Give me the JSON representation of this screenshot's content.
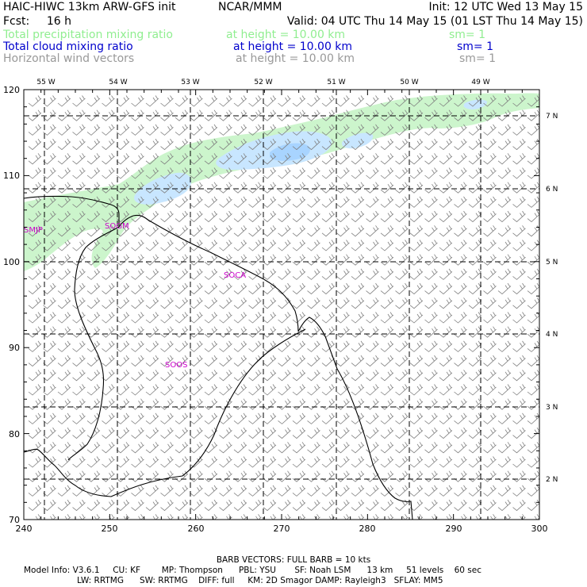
{
  "header": {
    "model": "HAIC-HIWC 13km ARW-GFS init",
    "org": "NCAR/MMM",
    "init": "Init: 12 UTC Wed 13 May 15",
    "fcst_label": "Fcst:",
    "fcst_value": "16 h",
    "valid": "Valid: 04 UTC Thu 14 May 15 (01 LST Thu 14 May 15)"
  },
  "fields": [
    {
      "name": "Total precipitation mixing ratio",
      "level": "at height = 10.00 km",
      "sm": "sm= 1",
      "color": "#90ee90"
    },
    {
      "name": "Total cloud mixing ratio",
      "level": "at height = 10.00 km",
      "sm": "sm= 1",
      "color": "#0000cc"
    },
    {
      "name": "Horizontal wind vectors",
      "level": "at height = 10.00 km",
      "sm": "sm= 1",
      "color": "#999999"
    }
  ],
  "axes": {
    "x_ticks": [
      "240",
      "250",
      "260",
      "270",
      "280",
      "290",
      "300"
    ],
    "y_ticks": [
      "70",
      "80",
      "90",
      "100",
      "110",
      "120"
    ],
    "lon_labels": [
      "55 W",
      "54 W",
      "53 W",
      "52 W",
      "51 W",
      "50 W",
      "49 W"
    ],
    "lat_labels": [
      "7 N",
      "6 N",
      "5 N",
      "4 N",
      "3 N",
      "2 N"
    ]
  },
  "stations": [
    "SMJP",
    "SOGM",
    "SOCA",
    "SOOS"
  ],
  "footer": {
    "barb": "BARB VECTORS:  FULL BARB = 10 kts",
    "line1": "Model Info: V3.6.1     CU: KF        MP: Thompson      PBL: YSU       SF: Noah LSM      13 km     51 levels    60 sec",
    "line2": "LW: RRTMG      SW: RRTMG    DIFF: full     KM: 2D Smagor DAMP: Rayleigh3   SFLAY: MM5"
  },
  "colors": {
    "precip": "#ccf5cc",
    "cloud": "#c8e6ff",
    "cloud_core": "#a8d4ff",
    "barb": "#808080",
    "station": "#cc00cc",
    "coast": "#000000"
  }
}
